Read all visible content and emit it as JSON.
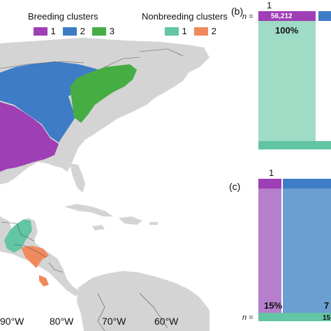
{
  "legend": {
    "breeding_title": "Breeding clusters",
    "breeding_items": [
      {
        "label": "1",
        "color": "#9e3fb5"
      },
      {
        "label": "2",
        "color": "#3e7cc6"
      },
      {
        "label": "3",
        "color": "#46ad44"
      }
    ],
    "nonbreeding_title": "Nonbreeding clusters",
    "nonbreeding_items": [
      {
        "label": "1",
        "color": "#62c5a4"
      },
      {
        "label": "2",
        "color": "#f08a5d"
      }
    ]
  },
  "map": {
    "land_color": "#d4d4d4",
    "x_ticks": [
      "90°W",
      "80°W",
      "70°W",
      "60°W"
    ]
  },
  "panel_b": {
    "label": "(b)",
    "top_category": "1",
    "n_label": "n =",
    "n_value": "56,212",
    "percent": "100%",
    "bar_color": "#9e3fb5",
    "flow_color": "#9fdcc6",
    "bottom_color": "#62c5a4"
  },
  "panel_c": {
    "label": "(c)",
    "top_category": "1",
    "n_label": "n =",
    "n_value_partial": "15",
    "pct_left": "15%",
    "pct_right_partial": "7",
    "left_color": "#b57fcc",
    "right_color": "#6b9fd1",
    "bottom_color": "#62c5a4"
  }
}
